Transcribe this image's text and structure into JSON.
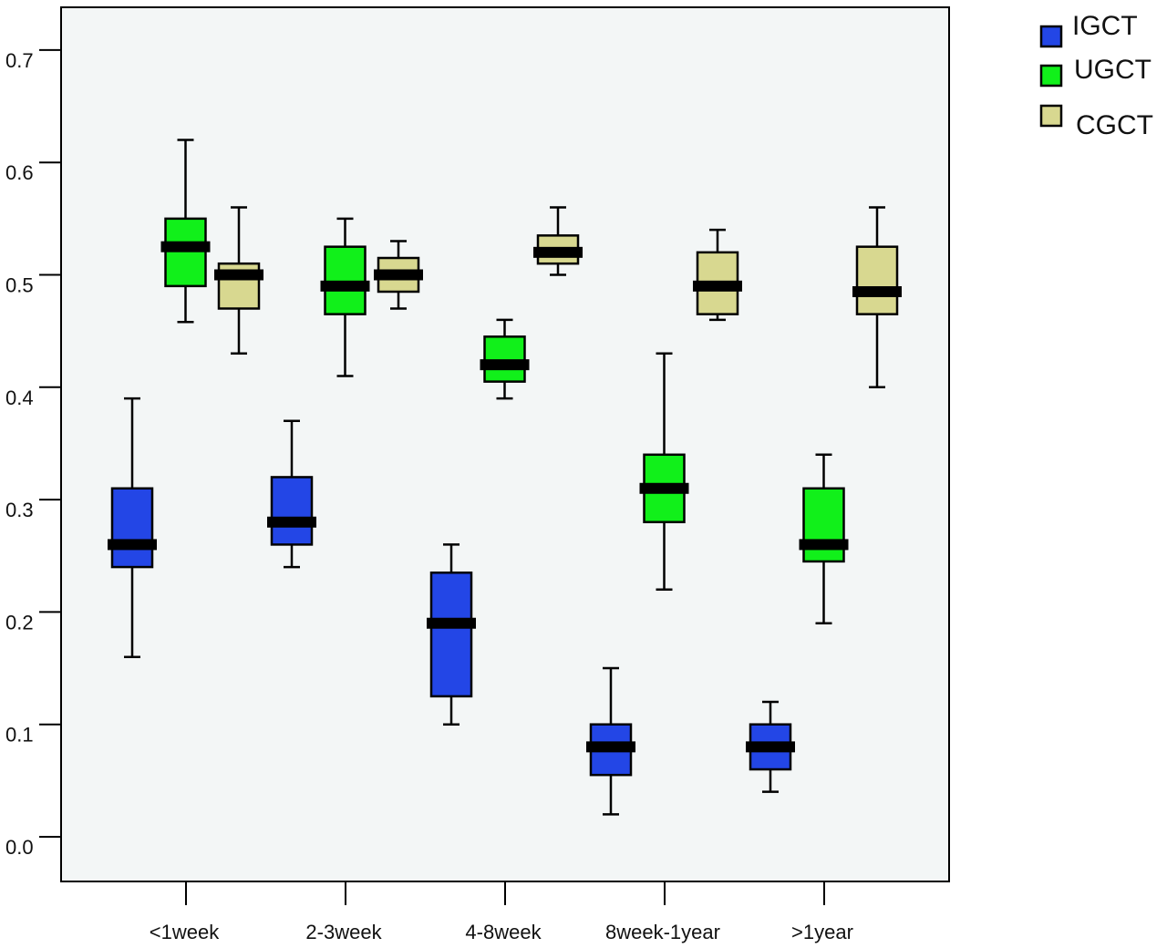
{
  "chart_data": {
    "type": "boxplot",
    "title": "",
    "xlabel": "",
    "ylabel": "",
    "ylim": [
      -0.04,
      0.74
    ],
    "yticks": [
      "0.0",
      "0.1",
      "0.2",
      "0.3",
      "0.4",
      "0.5",
      "0.6",
      "0.7"
    ],
    "categories": [
      "<1week",
      "2-3week",
      "4-8week",
      "8week-1year",
      ">1year"
    ],
    "grid": false,
    "legend_position": "top-right",
    "plot_background": "#f3f6f6",
    "series": [
      {
        "name": "IGCT",
        "color": "#2346e6",
        "boxes": [
          {
            "min": 0.16,
            "q1": 0.24,
            "median": 0.26,
            "q3": 0.31,
            "max": 0.39
          },
          {
            "min": 0.24,
            "q1": 0.26,
            "median": 0.28,
            "q3": 0.32,
            "max": 0.37
          },
          {
            "min": 0.1,
            "q1": 0.125,
            "median": 0.19,
            "q3": 0.235,
            "max": 0.26
          },
          {
            "min": 0.02,
            "q1": 0.055,
            "median": 0.08,
            "q3": 0.1,
            "max": 0.15
          },
          {
            "min": 0.04,
            "q1": 0.06,
            "median": 0.08,
            "q3": 0.1,
            "max": 0.12
          }
        ]
      },
      {
        "name": "UGCT",
        "color": "#11f01a",
        "boxes": [
          {
            "min": 0.458,
            "q1": 0.49,
            "median": 0.525,
            "q3": 0.55,
            "max": 0.62
          },
          {
            "min": 0.41,
            "q1": 0.465,
            "median": 0.49,
            "q3": 0.525,
            "max": 0.55
          },
          {
            "min": 0.39,
            "q1": 0.405,
            "median": 0.42,
            "q3": 0.445,
            "max": 0.46
          },
          {
            "min": 0.22,
            "q1": 0.28,
            "median": 0.31,
            "q3": 0.34,
            "max": 0.43
          },
          {
            "min": 0.19,
            "q1": 0.245,
            "median": 0.26,
            "q3": 0.31,
            "max": 0.34
          }
        ]
      },
      {
        "name": "CGCT",
        "color": "#d8d890",
        "boxes": [
          {
            "min": 0.43,
            "q1": 0.47,
            "median": 0.5,
            "q3": 0.51,
            "max": 0.56
          },
          {
            "min": 0.47,
            "q1": 0.485,
            "median": 0.5,
            "q3": 0.515,
            "max": 0.53
          },
          {
            "min": 0.5,
            "q1": 0.51,
            "median": 0.52,
            "q3": 0.535,
            "max": 0.56
          },
          {
            "min": 0.46,
            "q1": 0.465,
            "median": 0.49,
            "q3": 0.52,
            "max": 0.54
          },
          {
            "min": 0.4,
            "q1": 0.465,
            "median": 0.485,
            "q3": 0.525,
            "max": 0.56
          }
        ]
      }
    ]
  }
}
